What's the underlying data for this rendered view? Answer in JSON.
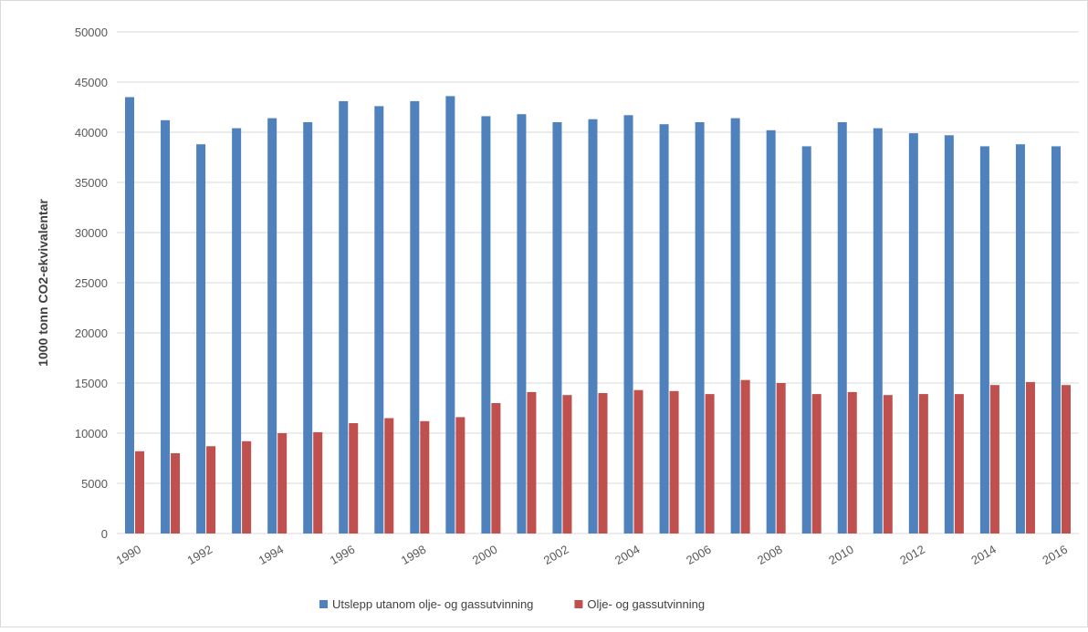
{
  "chart_data": {
    "type": "bar",
    "y_label": "1000 tonn CO2-ekvivalentar",
    "categories": [
      "1990",
      null,
      "1992",
      null,
      "1994",
      null,
      "1996",
      null,
      "1998",
      null,
      "2000",
      null,
      "2002",
      null,
      "2004",
      null,
      "2006",
      null,
      "2008",
      null,
      "2010",
      null,
      "2012",
      null,
      "2014",
      null,
      "2016"
    ],
    "series": [
      {
        "name": "Utslepp utanom olje- og gassutvinning",
        "color": "#4f81bd",
        "values": [
          43500,
          41200,
          38800,
          40400,
          41400,
          41000,
          43100,
          42600,
          43100,
          43600,
          41600,
          41800,
          41000,
          41300,
          41700,
          40800,
          41000,
          41400,
          40200,
          38600,
          41000,
          40400,
          39900,
          39700,
          38600,
          38800,
          38600
        ]
      },
      {
        "name": "Olje- og gassutvinning",
        "color": "#c0504d",
        "values": [
          8200,
          8000,
          8700,
          9200,
          10000,
          10100,
          11000,
          11500,
          11200,
          11600,
          13000,
          14100,
          13800,
          14000,
          14300,
          14200,
          13900,
          15300,
          15000,
          13900,
          14100,
          13800,
          13900,
          13900,
          14800,
          15100,
          14800
        ]
      }
    ],
    "ylim": [
      0,
      50000
    ],
    "yticks": [
      0,
      5000,
      10000,
      15000,
      20000,
      25000,
      30000,
      35000,
      40000,
      45000,
      50000
    ],
    "grid": true,
    "legend": "bottom"
  }
}
